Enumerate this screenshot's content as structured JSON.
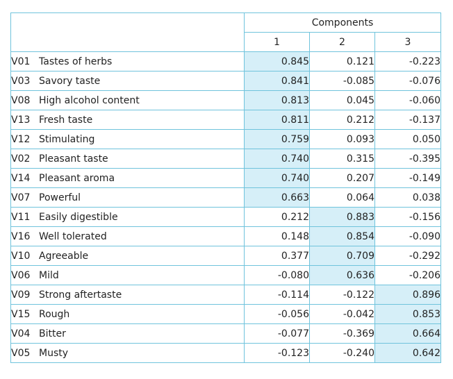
{
  "table": {
    "group_header": "Components",
    "columns": [
      "1",
      "2",
      "3"
    ],
    "highlight_color": "#d6eff8",
    "border_color": "#6fc3dc",
    "rows": [
      {
        "code": "V01",
        "label": "Tastes of herbs",
        "values": [
          "0.845",
          "0.121",
          "-0.223"
        ],
        "highlight": 0
      },
      {
        "code": "V03",
        "label": "Savory taste",
        "values": [
          "0.841",
          "-0.085",
          "-0.076"
        ],
        "highlight": 0
      },
      {
        "code": "V08",
        "label": "High alcohol content",
        "values": [
          "0.813",
          "0.045",
          "-0.060"
        ],
        "highlight": 0
      },
      {
        "code": "V13",
        "label": "Fresh taste",
        "values": [
          "0.811",
          "0.212",
          "-0.137"
        ],
        "highlight": 0
      },
      {
        "code": "V12",
        "label": "Stimulating",
        "values": [
          "0.759",
          "0.093",
          "0.050"
        ],
        "highlight": 0
      },
      {
        "code": "V02",
        "label": "Pleasant taste",
        "values": [
          "0.740",
          "0.315",
          "-0.395"
        ],
        "highlight": 0
      },
      {
        "code": "V14",
        "label": "Pleasant aroma",
        "values": [
          "0.740",
          "0.207",
          "-0.149"
        ],
        "highlight": 0
      },
      {
        "code": "V07",
        "label": "Powerful",
        "values": [
          "0.663",
          "0.064",
          "0.038"
        ],
        "highlight": 0
      },
      {
        "code": "V11",
        "label": "Easily digestible",
        "values": [
          "0.212",
          "0.883",
          "-0.156"
        ],
        "highlight": 1
      },
      {
        "code": "V16",
        "label": "Well tolerated",
        "values": [
          "0.148",
          "0.854",
          "-0.090"
        ],
        "highlight": 1
      },
      {
        "code": "V10",
        "label": "Agreeable",
        "values": [
          "0.377",
          "0.709",
          "-0.292"
        ],
        "highlight": 1
      },
      {
        "code": "V06",
        "label": "Mild",
        "values": [
          "-0.080",
          "0.636",
          "-0.206"
        ],
        "highlight": 1
      },
      {
        "code": "V09",
        "label": "Strong aftertaste",
        "values": [
          "-0.114",
          "-0.122",
          "0.896"
        ],
        "highlight": 2
      },
      {
        "code": "V15",
        "label": "Rough",
        "values": [
          "-0.056",
          "-0.042",
          "0.853"
        ],
        "highlight": 2
      },
      {
        "code": "V04",
        "label": "Bitter",
        "values": [
          "-0.077",
          "-0.369",
          "0.664"
        ],
        "highlight": 2
      },
      {
        "code": "V05",
        "label": "Musty",
        "values": [
          "-0.123",
          "-0.240",
          "0.642"
        ],
        "highlight": 2
      }
    ]
  }
}
